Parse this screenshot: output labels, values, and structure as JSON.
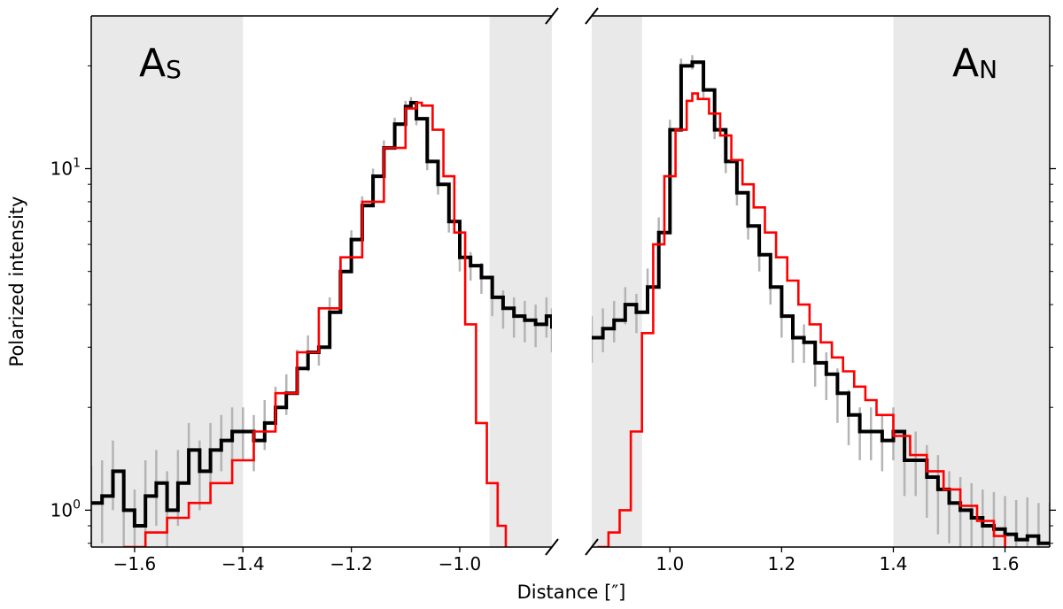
{
  "chart_data": {
    "type": "line",
    "ylabel": "Polarized intensity",
    "xlabel_main": "Distance [",
    "xlabel_unit": "″",
    "xlabel_close": "]",
    "y_scale": "log",
    "ylim": [
      0.78,
      28
    ],
    "y_ticks": [
      {
        "value": 1,
        "label": "10",
        "exp": "0"
      },
      {
        "value": 10,
        "label": "10",
        "exp": "1"
      }
    ],
    "grid": false,
    "legend": "none",
    "colors": {
      "observed": "#000000",
      "observed_error": "#b4b4b4",
      "model": "#ff0000",
      "shade": "#e9e9e9"
    },
    "panels": [
      {
        "id": "south",
        "label": "A",
        "label_sub": "S",
        "xlim": [
          -1.68,
          -0.83
        ],
        "x_ticks": [
          {
            "value": -1.6,
            "label": "−1.6"
          },
          {
            "value": -1.4,
            "label": "−1.4"
          },
          {
            "value": -1.2,
            "label": "−1.2"
          },
          {
            "value": -1.0,
            "label": "−1.0"
          }
        ],
        "shaded_regions": [
          [
            -1.68,
            -1.4
          ],
          [
            -0.945,
            -0.83
          ]
        ],
        "series": [
          {
            "role": "observed",
            "x": [
              -1.68,
              -1.66,
              -1.64,
              -1.62,
              -1.6,
              -1.58,
              -1.56,
              -1.54,
              -1.52,
              -1.5,
              -1.48,
              -1.46,
              -1.44,
              -1.42,
              -1.4,
              -1.38,
              -1.36,
              -1.34,
              -1.32,
              -1.3,
              -1.28,
              -1.26,
              -1.24,
              -1.22,
              -1.2,
              -1.18,
              -1.16,
              -1.14,
              -1.12,
              -1.1,
              -1.09,
              -1.08,
              -1.06,
              -1.04,
              -1.02,
              -1.0,
              -0.98,
              -0.96,
              -0.94,
              -0.92,
              -0.9,
              -0.88,
              -0.86,
              -0.84,
              -0.83
            ],
            "y": [
              1.05,
              1.1,
              1.3,
              1.0,
              0.9,
              1.1,
              1.2,
              1.0,
              1.2,
              1.5,
              1.3,
              1.5,
              1.6,
              1.7,
              1.7,
              1.6,
              1.8,
              2.0,
              2.2,
              2.6,
              2.9,
              3.0,
              3.8,
              5.0,
              6.2,
              7.8,
              9.5,
              11.5,
              13.5,
              15.2,
              15.6,
              14.0,
              10.5,
              9.0,
              7.0,
              5.5,
              5.2,
              4.8,
              4.2,
              3.9,
              3.7,
              3.6,
              3.5,
              3.7,
              3.4
            ],
            "err_y": [
              0.3,
              0.3,
              0.3,
              0.3,
              0.25,
              0.3,
              0.3,
              0.3,
              0.3,
              0.3,
              0.3,
              0.3,
              0.3,
              0.3,
              0.3,
              0.3,
              0.3,
              0.3,
              0.3,
              0.35,
              0.35,
              0.35,
              0.4,
              0.4,
              0.4,
              0.5,
              0.5,
              0.6,
              0.6,
              0.6,
              0.6,
              0.6,
              0.6,
              0.6,
              0.5,
              0.5,
              0.5,
              0.5,
              0.5,
              0.5,
              0.5,
              0.5,
              0.5,
              0.5,
              0.5
            ]
          },
          {
            "role": "model",
            "x": [
              -1.62,
              -1.58,
              -1.54,
              -1.5,
              -1.46,
              -1.42,
              -1.38,
              -1.34,
              -1.3,
              -1.26,
              -1.22,
              -1.18,
              -1.14,
              -1.1,
              -1.08,
              -1.07,
              -1.05,
              -1.03,
              -1.01,
              -0.99,
              -0.97,
              -0.95,
              -0.93,
              -0.915
            ],
            "y": [
              0.78,
              0.86,
              0.95,
              1.05,
              1.2,
              1.4,
              1.7,
              2.2,
              2.9,
              3.9,
              5.5,
              8.0,
              11.5,
              15.0,
              15.6,
              15.3,
              13.0,
              9.5,
              6.5,
              3.5,
              1.8,
              1.2,
              0.9,
              0.78
            ]
          }
        ]
      },
      {
        "id": "north",
        "label": "A",
        "label_sub": "N",
        "xlim": [
          0.86,
          1.68
        ],
        "x_ticks": [
          {
            "value": 1.0,
            "label": "1.0"
          },
          {
            "value": 1.2,
            "label": "1.2"
          },
          {
            "value": 1.4,
            "label": "1.4"
          },
          {
            "value": 1.6,
            "label": "1.6"
          }
        ],
        "shaded_regions": [
          [
            0.86,
            0.95
          ],
          [
            1.4,
            1.68
          ]
        ],
        "series": [
          {
            "role": "observed",
            "x": [
              0.86,
              0.88,
              0.9,
              0.92,
              0.94,
              0.96,
              0.98,
              1.0,
              1.02,
              1.04,
              1.06,
              1.08,
              1.1,
              1.12,
              1.14,
              1.16,
              1.18,
              1.2,
              1.22,
              1.24,
              1.26,
              1.28,
              1.3,
              1.32,
              1.34,
              1.36,
              1.38,
              1.4,
              1.42,
              1.44,
              1.46,
              1.48,
              1.5,
              1.52,
              1.54,
              1.56,
              1.58,
              1.6,
              1.62,
              1.64,
              1.66,
              1.68
            ],
            "y": [
              3.2,
              3.4,
              3.6,
              4.0,
              3.8,
              4.5,
              6.5,
              13.0,
              20.0,
              20.5,
              17.0,
              13.0,
              10.5,
              8.5,
              6.8,
              5.6,
              4.5,
              3.7,
              3.2,
              3.1,
              2.7,
              2.5,
              2.2,
              1.9,
              1.7,
              1.7,
              1.6,
              1.7,
              1.4,
              1.4,
              1.25,
              1.15,
              1.05,
              1.0,
              0.95,
              0.9,
              0.88,
              0.85,
              0.82,
              0.84,
              0.8,
              0.8
            ],
            "err_y": [
              0.5,
              0.5,
              0.5,
              0.5,
              0.5,
              0.6,
              0.7,
              0.9,
              1.0,
              1.0,
              0.9,
              0.8,
              0.8,
              0.7,
              0.6,
              0.6,
              0.5,
              0.5,
              0.5,
              0.4,
              0.4,
              0.4,
              0.4,
              0.35,
              0.3,
              0.3,
              0.3,
              0.3,
              0.3,
              0.3,
              0.3,
              0.3,
              0.25,
              0.25,
              0.25,
              0.25,
              0.25,
              0.25,
              0.25,
              0.25,
              0.25,
              0.25
            ]
          },
          {
            "role": "model",
            "x": [
              0.87,
              0.89,
              0.91,
              0.93,
              0.95,
              0.97,
              0.99,
              1.01,
              1.03,
              1.04,
              1.05,
              1.07,
              1.09,
              1.11,
              1.13,
              1.15,
              1.17,
              1.19,
              1.21,
              1.23,
              1.25,
              1.27,
              1.29,
              1.31,
              1.33,
              1.35,
              1.37,
              1.4,
              1.43,
              1.46,
              1.49,
              1.52,
              1.55,
              1.58,
              1.6
            ],
            "y": [
              0.78,
              0.86,
              1.0,
              1.7,
              3.3,
              6.0,
              9.5,
              13.0,
              15.8,
              16.6,
              16.0,
              14.5,
              12.5,
              10.6,
              9.0,
              7.7,
              6.5,
              5.5,
              4.7,
              4.0,
              3.5,
              3.1,
              2.8,
              2.55,
              2.3,
              2.1,
              1.9,
              1.65,
              1.45,
              1.3,
              1.15,
              1.03,
              0.93,
              0.84,
              0.78
            ]
          }
        ]
      }
    ]
  }
}
